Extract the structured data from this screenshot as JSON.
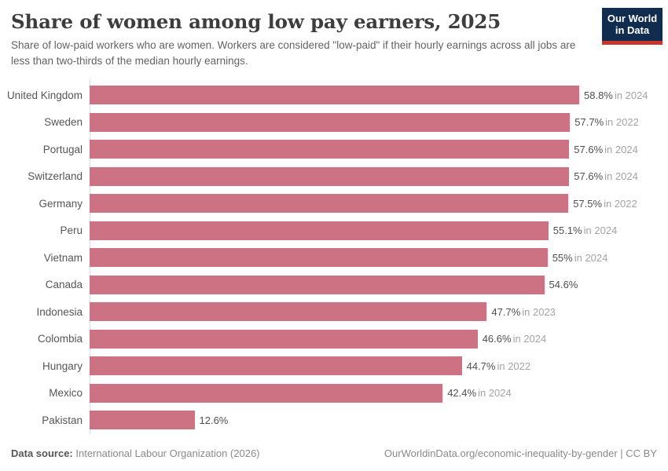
{
  "header": {
    "title": "Share of women among low pay earners, 2025",
    "subtitle": "Share of low-paid workers who are women. Workers are considered \"low-paid\" if their hourly earnings across all jobs are less than two-thirds of the median hourly earnings."
  },
  "logo": {
    "line1": "Our World",
    "line2": "in Data"
  },
  "chart_data": {
    "type": "bar",
    "orientation": "horizontal",
    "title": "Share of women among low pay earners, 2025",
    "xlabel": "",
    "ylabel": "",
    "xlim": [
      0,
      58.8
    ],
    "grid": false,
    "legend": "none",
    "bar_color": "#cd7283",
    "categories": [
      "United Kingdom",
      "Sweden",
      "Portugal",
      "Switzerland",
      "Germany",
      "Peru",
      "Vietnam",
      "Canada",
      "Indonesia",
      "Colombia",
      "Hungary",
      "Mexico",
      "Pakistan"
    ],
    "values": [
      58.8,
      57.7,
      57.6,
      57.6,
      57.5,
      55.1,
      55,
      54.6,
      47.7,
      46.6,
      44.7,
      42.4,
      12.6
    ],
    "value_labels": [
      "58.8%",
      "57.7%",
      "57.6%",
      "57.6%",
      "57.5%",
      "55.1%",
      "55%",
      "54.6%",
      "47.7%",
      "46.6%",
      "44.7%",
      "42.4%",
      "12.6%"
    ],
    "year_labels": [
      "in 2024",
      "in 2022",
      "in 2024",
      "in 2024",
      "in 2022",
      "in 2024",
      "in 2024",
      "",
      "in 2023",
      "in 2024",
      "in 2022",
      "in 2024",
      ""
    ]
  },
  "footer": {
    "source_label": "Data source:",
    "source_value": " International Labour Organization (2026)",
    "link": "OurWorldinData.org/economic-inequality-by-gender | CC BY"
  },
  "colors": {
    "bar": "#cd7283",
    "logo_bg": "#102d50",
    "logo_accent": "#c9342c",
    "axis_line": "#dcdcdc"
  }
}
